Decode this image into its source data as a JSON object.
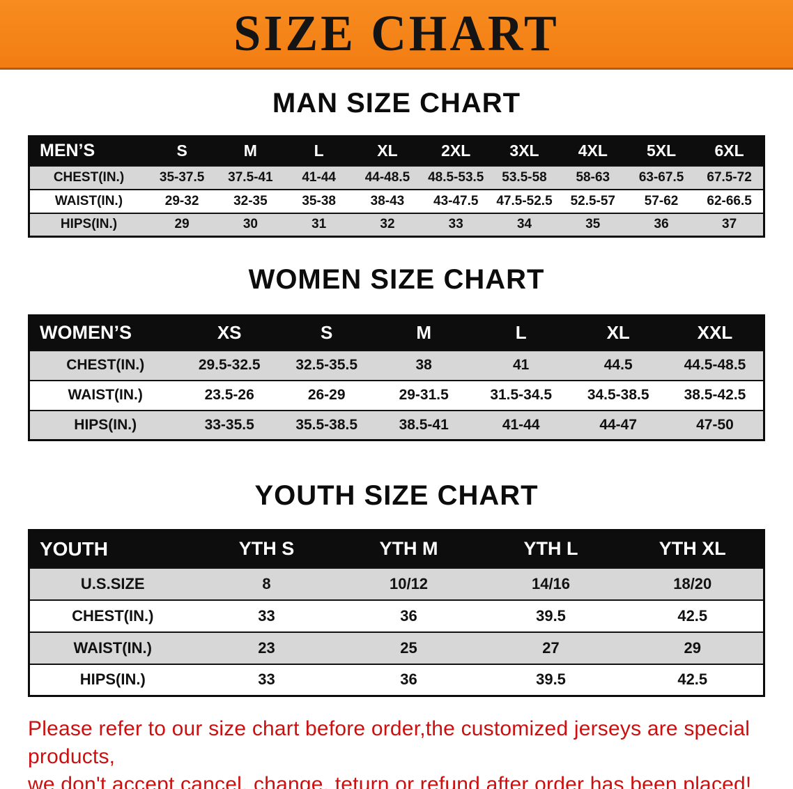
{
  "banner": {
    "title": "SIZE CHART"
  },
  "colors": {
    "banner_bg": "#f5831a",
    "table_header_bg": "#0d0d0d",
    "table_header_text": "#ffffff",
    "row_alternate_bg": "#d7d7d7",
    "disclaimer_text": "#cc1010"
  },
  "sections": [
    {
      "title": "MAN SIZE CHART",
      "table": {
        "header": [
          "MEN’S",
          "S",
          "M",
          "L",
          "XL",
          "2XL",
          "3XL",
          "4XL",
          "5XL",
          "6XL"
        ],
        "rows": [
          [
            "CHEST(IN.)",
            "35-37.5",
            "37.5-41",
            "41-44",
            "44-48.5",
            "48.5-53.5",
            "53.5-58",
            "58-63",
            "63-67.5",
            "67.5-72"
          ],
          [
            "WAIST(IN.)",
            "29-32",
            "32-35",
            "35-38",
            "38-43",
            "43-47.5",
            "47.5-52.5",
            "52.5-57",
            "57-62",
            "62-66.5"
          ],
          [
            "HIPS(IN.)",
            "29",
            "30",
            "31",
            "32",
            "33",
            "34",
            "35",
            "36",
            "37"
          ]
        ]
      }
    },
    {
      "title": "WOMEN SIZE CHART",
      "table": {
        "header": [
          "WOMEN’S",
          "XS",
          "S",
          "M",
          "L",
          "XL",
          "XXL"
        ],
        "rows": [
          [
            "CHEST(IN.)",
            "29.5-32.5",
            "32.5-35.5",
            "38",
            "41",
            "44.5",
            "44.5-48.5"
          ],
          [
            "WAIST(IN.)",
            "23.5-26",
            "26-29",
            "29-31.5",
            "31.5-34.5",
            "34.5-38.5",
            "38.5-42.5"
          ],
          [
            "HIPS(IN.)",
            "33-35.5",
            "35.5-38.5",
            "38.5-41",
            "41-44",
            "44-47",
            "47-50"
          ]
        ]
      }
    },
    {
      "title": "YOUTH SIZE CHART",
      "table": {
        "header": [
          "YOUTH",
          "YTH S",
          "YTH M",
          "YTH L",
          "YTH XL"
        ],
        "rows": [
          [
            "U.S.SIZE",
            "8",
            "10/12",
            "14/16",
            "18/20"
          ],
          [
            "CHEST(IN.)",
            "33",
            "36",
            "39.5",
            "42.5"
          ],
          [
            "WAIST(IN.)",
            "23",
            "25",
            "27",
            "29"
          ],
          [
            "HIPS(IN.)",
            "33",
            "36",
            "39.5",
            "42.5"
          ]
        ]
      }
    }
  ],
  "disclaimer": {
    "line1": "Please refer to our size chart before order,the customized jerseys are special products,",
    "line2": "we don't accept cancel, change, teturn or refund after order has been placed!"
  }
}
